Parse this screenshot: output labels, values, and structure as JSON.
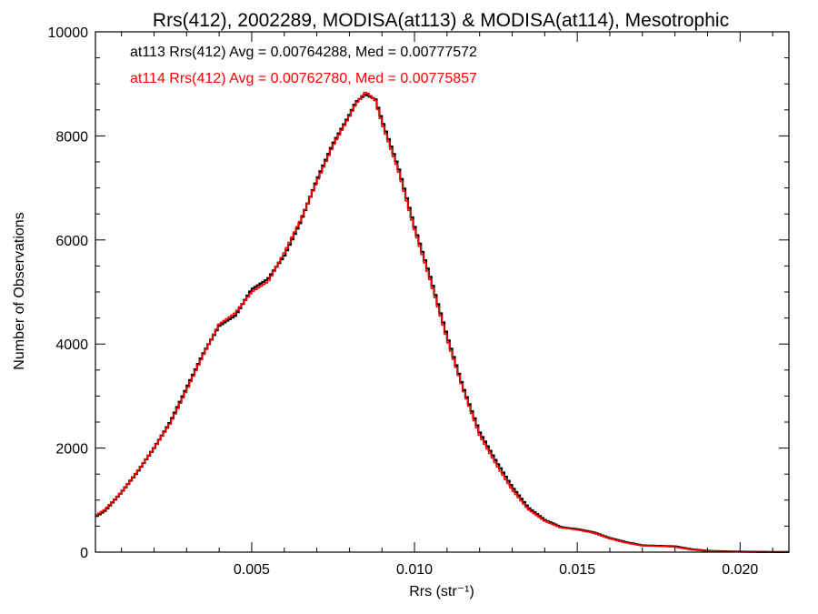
{
  "chart_data": {
    "type": "line",
    "title": "Rrs(412), 2002289, MODISA(at113) & MODISA(at114), Mesotrophic",
    "xlabel": "Rrs (str⁻¹)",
    "ylabel": "Number of Observations",
    "xlim": [
      0.0002,
      0.0215
    ],
    "ylim": [
      0,
      10000
    ],
    "xticks": [
      0.005,
      0.01,
      0.015,
      0.02
    ],
    "xtick_labels": [
      "0.005",
      "0.010",
      "0.015",
      "0.020"
    ],
    "yticks": [
      0,
      2000,
      4000,
      6000,
      8000,
      10000
    ],
    "ytick_labels": [
      "0",
      "2000",
      "4000",
      "6000",
      "8000",
      "10000"
    ],
    "grid": false,
    "legend_placement": "top-left",
    "annotations": [
      {
        "text": "at113 Rrs(412) Avg = 0.00764288, Med = 0.00777572",
        "color": "#000000"
      },
      {
        "text": "at114 Rrs(412) Avg = 0.00762780, Med = 0.00775857",
        "color": "#ff0000"
      }
    ],
    "series": [
      {
        "name": "at113",
        "color": "#000000",
        "x": [
          0.0002,
          0.0005,
          0.001,
          0.0015,
          0.002,
          0.0025,
          0.003,
          0.0035,
          0.004,
          0.0045,
          0.005,
          0.0055,
          0.006,
          0.0065,
          0.007,
          0.0075,
          0.008,
          0.0082,
          0.0085,
          0.0088,
          0.009,
          0.0095,
          0.01,
          0.0105,
          0.011,
          0.0115,
          0.012,
          0.0125,
          0.013,
          0.0135,
          0.014,
          0.0145,
          0.015,
          0.0155,
          0.016,
          0.0165,
          0.017,
          0.0175,
          0.018,
          0.0185,
          0.019,
          0.0195,
          0.02,
          0.0205,
          0.021,
          0.0215
        ],
        "y": [
          680,
          800,
          1150,
          1550,
          2000,
          2500,
          3150,
          3800,
          4350,
          4550,
          5050,
          5250,
          5700,
          6350,
          7150,
          7850,
          8400,
          8650,
          8800,
          8700,
          8300,
          7400,
          6250,
          5250,
          4150,
          3150,
          2300,
          1750,
          1250,
          850,
          620,
          480,
          440,
          380,
          270,
          190,
          130,
          120,
          110,
          55,
          25,
          15,
          10,
          5,
          3,
          2
        ]
      },
      {
        "name": "at114",
        "color": "#ff0000",
        "x": [
          0.0002,
          0.0005,
          0.001,
          0.0015,
          0.002,
          0.0025,
          0.003,
          0.0035,
          0.004,
          0.0045,
          0.005,
          0.0055,
          0.006,
          0.0065,
          0.007,
          0.0075,
          0.008,
          0.0082,
          0.0085,
          0.0088,
          0.009,
          0.0095,
          0.01,
          0.0105,
          0.011,
          0.0115,
          0.012,
          0.0125,
          0.013,
          0.0135,
          0.014,
          0.0145,
          0.015,
          0.0155,
          0.016,
          0.0165,
          0.017,
          0.0175,
          0.018,
          0.0185,
          0.019,
          0.0195,
          0.02,
          0.0205,
          0.021,
          0.0215
        ],
        "y": [
          700,
          820,
          1150,
          1560,
          2000,
          2480,
          3120,
          3780,
          4380,
          4600,
          5000,
          5200,
          5750,
          6380,
          7120,
          7820,
          8380,
          8620,
          8850,
          8680,
          8250,
          7350,
          6200,
          5200,
          4100,
          3120,
          2250,
          1700,
          1200,
          820,
          600,
          470,
          430,
          370,
          260,
          180,
          125,
          115,
          100,
          50,
          22,
          14,
          9,
          5,
          3,
          2
        ]
      }
    ]
  }
}
